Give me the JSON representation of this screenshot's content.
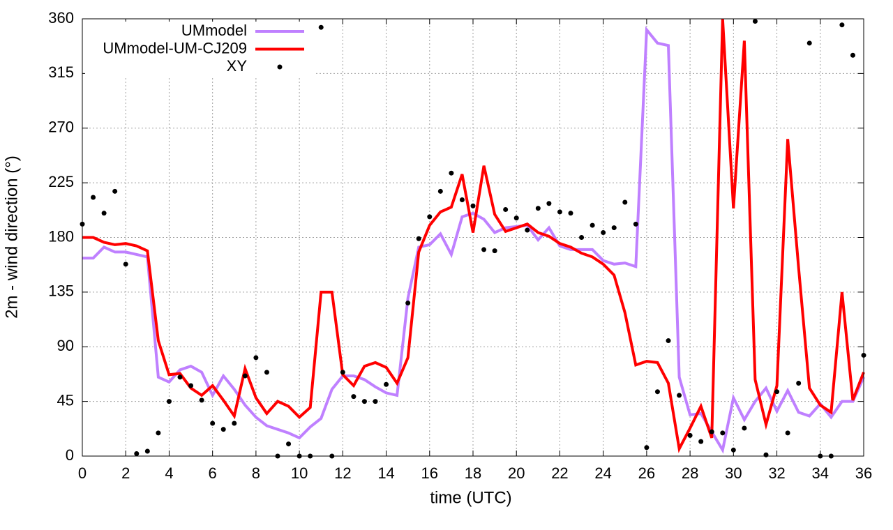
{
  "chart_data": {
    "type": "line",
    "xlabel": "time (UTC)",
    "ylabel": "2m - wind direction (°)",
    "x": [
      0,
      0.5,
      1,
      1.5,
      2,
      2.5,
      3,
      3.5,
      4,
      4.5,
      5,
      5.5,
      6,
      6.5,
      7,
      7.5,
      8,
      8.5,
      9,
      9.5,
      10,
      10.5,
      11,
      11.5,
      12,
      12.5,
      13,
      13.5,
      14,
      14.5,
      15,
      15.5,
      16,
      16.5,
      17,
      17.5,
      18,
      18.5,
      19,
      19.5,
      20,
      20.5,
      21,
      21.5,
      22,
      22.5,
      23,
      23.5,
      24,
      24.5,
      25,
      25.5,
      26,
      26.5,
      27,
      27.5,
      28,
      28.5,
      29,
      29.5,
      30,
      30.5,
      31,
      31.5,
      32,
      32.5,
      33,
      33.5,
      34,
      34.5,
      35,
      35.5,
      36
    ],
    "series": [
      {
        "name": "UMmodel",
        "color": "#bf80ff",
        "style": "line",
        "values": [
          163,
          163,
          172,
          168,
          168,
          166,
          164,
          65,
          61,
          71,
          74,
          69,
          50,
          66,
          55,
          42,
          32,
          25,
          22,
          19,
          15,
          24,
          31,
          55,
          66,
          66,
          63,
          57,
          52,
          50,
          130,
          172,
          174,
          183,
          166,
          197,
          200,
          195,
          184,
          188,
          189,
          190,
          178,
          188,
          173,
          170,
          170,
          170,
          161,
          158,
          159,
          156,
          351,
          340,
          338,
          65,
          34,
          35,
          20,
          5,
          48,
          30,
          45,
          56,
          37,
          54,
          36,
          33,
          43,
          32,
          45,
          45,
          65
        ]
      },
      {
        "name": "UMmodel-UM-CJ209",
        "color": "#ff0000",
        "style": "line",
        "values": [
          180,
          180,
          176,
          174,
          175,
          173,
          169,
          95,
          67,
          68,
          56,
          50,
          58,
          46,
          33,
          72,
          48,
          35,
          45,
          41,
          32,
          40,
          135,
          135,
          67,
          58,
          74,
          77,
          73,
          60,
          81,
          168,
          190,
          201,
          205,
          232,
          184,
          239,
          199,
          185,
          188,
          191,
          184,
          181,
          175,
          172,
          167,
          164,
          158,
          149,
          118,
          75,
          78,
          77,
          60,
          6,
          23,
          41,
          15,
          360,
          204,
          342,
          63,
          26,
          58,
          261,
          155,
          56,
          42,
          36,
          135,
          46,
          69
        ]
      },
      {
        "name": "XY",
        "color": "#000000",
        "style": "points",
        "values": [
          191,
          213,
          200,
          218,
          158,
          2,
          4,
          19,
          45,
          65,
          58,
          46,
          27,
          22,
          27,
          66,
          81,
          69,
          0,
          10,
          0,
          0,
          353,
          0,
          69,
          49,
          45,
          45,
          59,
          null,
          126,
          179,
          197,
          218,
          233,
          211,
          206,
          170,
          169,
          203,
          196,
          186,
          204,
          208,
          201,
          200,
          180,
          190,
          184,
          188,
          209,
          191,
          7,
          53,
          95,
          50,
          17,
          12,
          20,
          19,
          5,
          23,
          358,
          1,
          53,
          19,
          60,
          340,
          0,
          0,
          355,
          330,
          83
        ]
      }
    ],
    "xlim": [
      0,
      36
    ],
    "xticks": [
      0,
      2,
      4,
      6,
      8,
      10,
      12,
      14,
      16,
      18,
      20,
      22,
      24,
      26,
      28,
      30,
      32,
      34,
      36
    ],
    "ylim": [
      0,
      360
    ],
    "yticks": [
      0,
      45,
      90,
      135,
      180,
      225,
      270,
      315,
      360
    ],
    "grid": true,
    "legend": "upper-left"
  }
}
